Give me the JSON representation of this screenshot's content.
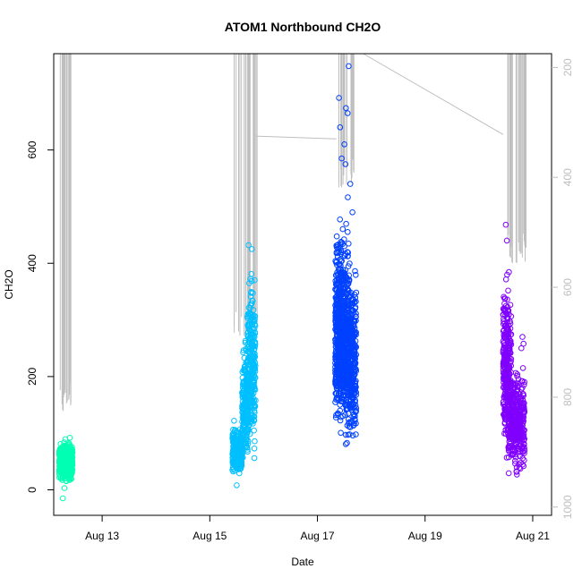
{
  "chart_data": {
    "type": "scatter",
    "title": "ATOM1 Northbound CH2O",
    "xlabel": "Date",
    "ylabel": "CH2O",
    "x_ticks": [
      "Aug 13",
      "Aug 15",
      "Aug 17",
      "Aug 19",
      "Aug 21"
    ],
    "x_tick_values": [
      13,
      15,
      17,
      19,
      21
    ],
    "xlim": [
      12.1,
      21.35
    ],
    "y_ticks": [
      0,
      200,
      400,
      600
    ],
    "ylim": [
      -45,
      770
    ],
    "y2_ticks": [
      200,
      400,
      600,
      800,
      1000
    ],
    "y2lim": [
      1015,
      175
    ],
    "y2_reversed": true,
    "grid": false,
    "legend": "none",
    "colors": {
      "series": [
        "#00FFB2",
        "#00BFFF",
        "#0040FF",
        "#8000FF"
      ],
      "profile_line": "#BEBEBE",
      "axis": "#000000",
      "secondary_axis": "#BEBEBE"
    },
    "series": [
      {
        "x_range": [
          12.2,
          12.45
        ],
        "clusters": [
          {
            "x": [
              12.2,
              12.45
            ],
            "y": [
              10,
              85
            ],
            "n": 420
          },
          {
            "x": [
              12.2,
              12.45
            ],
            "y": [
              15,
              95
            ],
            "n": 120
          }
        ],
        "extra_points": [
          [
            12.27,
            -15
          ],
          [
            12.3,
            3
          ],
          [
            12.4,
            92
          ]
        ]
      },
      {
        "x_range": [
          15.42,
          15.85
        ],
        "clusters": [
          {
            "x": [
              15.42,
              15.6
            ],
            "y": [
              12,
              120
            ],
            "n": 260
          },
          {
            "x": [
              15.6,
              15.72
            ],
            "y": [
              20,
              280
            ],
            "n": 200
          },
          {
            "x": [
              15.7,
              15.85
            ],
            "y": [
              30,
              420
            ],
            "n": 280
          }
        ],
        "extra_points": [
          [
            15.72,
            432
          ],
          [
            15.78,
            425
          ],
          [
            15.45,
            122
          ],
          [
            15.5,
            8
          ]
        ]
      },
      {
        "x_range": [
          17.33,
          17.72
        ],
        "clusters": [
          {
            "x": [
              17.33,
              17.5
            ],
            "y": [
              75,
              480
            ],
            "n": 450
          },
          {
            "x": [
              17.5,
              17.72
            ],
            "y": [
              42,
              420
            ],
            "n": 450
          },
          {
            "x": [
              17.35,
              17.6
            ],
            "y": [
              100,
              560
            ],
            "n": 140
          }
        ],
        "extra_points": [
          [
            17.58,
            748
          ],
          [
            17.4,
            692
          ],
          [
            17.53,
            674
          ],
          [
            17.56,
            665
          ],
          [
            17.42,
            640
          ],
          [
            17.5,
            610
          ],
          [
            17.45,
            585
          ],
          [
            17.52,
            575
          ],
          [
            17.61,
            540
          ],
          [
            17.65,
            490
          ]
        ]
      },
      {
        "x_range": [
          20.45,
          20.85
        ],
        "clusters": [
          {
            "x": [
              20.45,
              20.6
            ],
            "y": [
              20,
              410
            ],
            "n": 320
          },
          {
            "x": [
              20.55,
              20.85
            ],
            "y": [
              12,
              230
            ],
            "n": 380
          }
        ],
        "extra_points": [
          [
            20.5,
            468
          ],
          [
            20.52,
            440
          ],
          [
            20.81,
            270
          ],
          [
            20.83,
            258
          ],
          [
            20.79,
            250
          ],
          [
            20.82,
            215
          ]
        ]
      }
    ],
    "profile_segments": [
      {
        "x": [
          12.22,
          12.42
        ],
        "y2": [
          770,
          870
        ]
      },
      {
        "x": [
          15.45,
          15.9
        ],
        "y2": [
          640,
          180
        ]
      },
      {
        "x": [
          17.35,
          17.75
        ],
        "y2": [
          360,
          180
        ]
      },
      {
        "x": [
          20.45,
          20.88
        ],
        "y2": [
          500,
          180
        ]
      }
    ],
    "profile_connectors": [
      {
        "x": [
          15.85,
          17.35
        ],
        "y2": [
          325,
          330
        ]
      },
      {
        "x": [
          17.85,
          20.45
        ],
        "y2": [
          175,
          322
        ]
      }
    ]
  }
}
